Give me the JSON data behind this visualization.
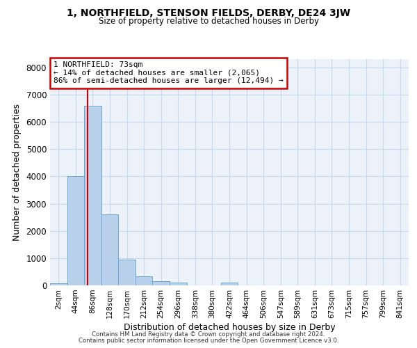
{
  "title1": "1, NORTHFIELD, STENSON FIELDS, DERBY, DE24 3JW",
  "title2": "Size of property relative to detached houses in Derby",
  "xlabel": "Distribution of detached houses by size in Derby",
  "ylabel": "Number of detached properties",
  "bar_labels": [
    "2sqm",
    "44sqm",
    "86sqm",
    "128sqm",
    "170sqm",
    "212sqm",
    "254sqm",
    "296sqm",
    "338sqm",
    "380sqm",
    "422sqm",
    "464sqm",
    "506sqm",
    "547sqm",
    "589sqm",
    "631sqm",
    "673sqm",
    "715sqm",
    "757sqm",
    "799sqm",
    "841sqm"
  ],
  "bar_values": [
    80,
    4000,
    6580,
    2600,
    950,
    320,
    150,
    110,
    0,
    0,
    90,
    0,
    0,
    0,
    0,
    0,
    0,
    0,
    0,
    0,
    0
  ],
  "bar_color": "#b8d0ea",
  "bar_edgecolor": "#6aaad4",
  "grid_color": "#c8d8ec",
  "background_color": "#edf2fa",
  "vline_x": 1.69,
  "vline_color": "#cc0000",
  "annotation_text": "1 NORTHFIELD: 73sqm\n← 14% of detached houses are smaller (2,065)\n86% of semi-detached houses are larger (12,494) →",
  "annotation_box_facecolor": "#ffffff",
  "annotation_box_edgecolor": "#cc0000",
  "ylim": [
    0,
    8300
  ],
  "yticks": [
    0,
    1000,
    2000,
    3000,
    4000,
    5000,
    6000,
    7000,
    8000
  ],
  "footer1": "Contains HM Land Registry data © Crown copyright and database right 2024.",
  "footer2": "Contains public sector information licensed under the Open Government Licence v3.0."
}
